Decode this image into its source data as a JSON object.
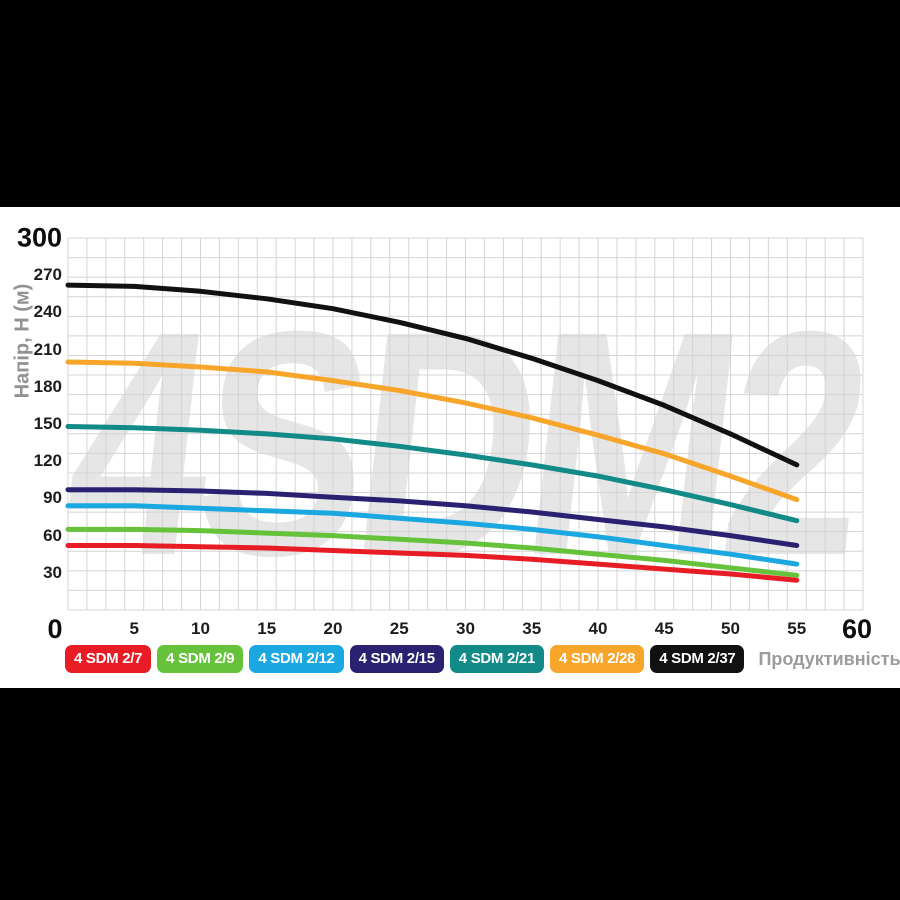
{
  "page": {
    "background_color": "#000000",
    "panel_color": "#ffffff"
  },
  "chart_data": {
    "type": "line",
    "title": "",
    "watermark": "4SDM2",
    "xlabel": "Продуктивність, Q (л/хв)",
    "ylabel": "Напір, H (м)",
    "xlim": [
      0,
      60
    ],
    "ylim": [
      0,
      300
    ],
    "x_ticks": [
      0,
      5,
      10,
      15,
      20,
      25,
      30,
      35,
      40,
      45,
      50,
      55,
      60
    ],
    "y_ticks": [
      0,
      30,
      60,
      90,
      120,
      150,
      180,
      210,
      240,
      270,
      300
    ],
    "grid": "on",
    "grid_color": "#d4d4d4",
    "legend_position": "bottom",
    "x": [
      0,
      5,
      10,
      15,
      20,
      25,
      30,
      35,
      40,
      45,
      50,
      55
    ],
    "series": [
      {
        "name": "4 SDM 2/7",
        "color": "#e81c25",
        "values": [
          52,
          52,
          51,
          50,
          48,
          46,
          44,
          41,
          37,
          33,
          29,
          24
        ]
      },
      {
        "name": "4 SDM 2/9",
        "color": "#66c23b",
        "values": [
          65,
          65,
          64,
          62,
          60,
          57,
          54,
          50,
          45,
          40,
          34,
          28
        ]
      },
      {
        "name": "4 SDM 2/12",
        "color": "#1ba7e0",
        "values": [
          84,
          84,
          82,
          80,
          78,
          74,
          70,
          65,
          59,
          52,
          45,
          37
        ]
      },
      {
        "name": "4 SDM 2/15",
        "color": "#2a2270",
        "values": [
          97,
          97,
          96,
          94,
          91,
          88,
          84,
          79,
          73,
          67,
          60,
          52
        ]
      },
      {
        "name": "4 SDM 2/21",
        "color": "#118a88",
        "values": [
          148,
          147,
          145,
          142,
          138,
          132,
          125,
          117,
          108,
          97,
          85,
          72
        ]
      },
      {
        "name": "4 SDM 2/28",
        "color": "#f7a62b",
        "values": [
          200,
          199,
          196,
          192,
          185,
          177,
          167,
          155,
          141,
          126,
          108,
          89
        ]
      },
      {
        "name": "4 SDM 2/37",
        "color": "#111111",
        "values": [
          262,
          261,
          257,
          251,
          243,
          232,
          219,
          203,
          185,
          165,
          142,
          117
        ]
      }
    ]
  }
}
